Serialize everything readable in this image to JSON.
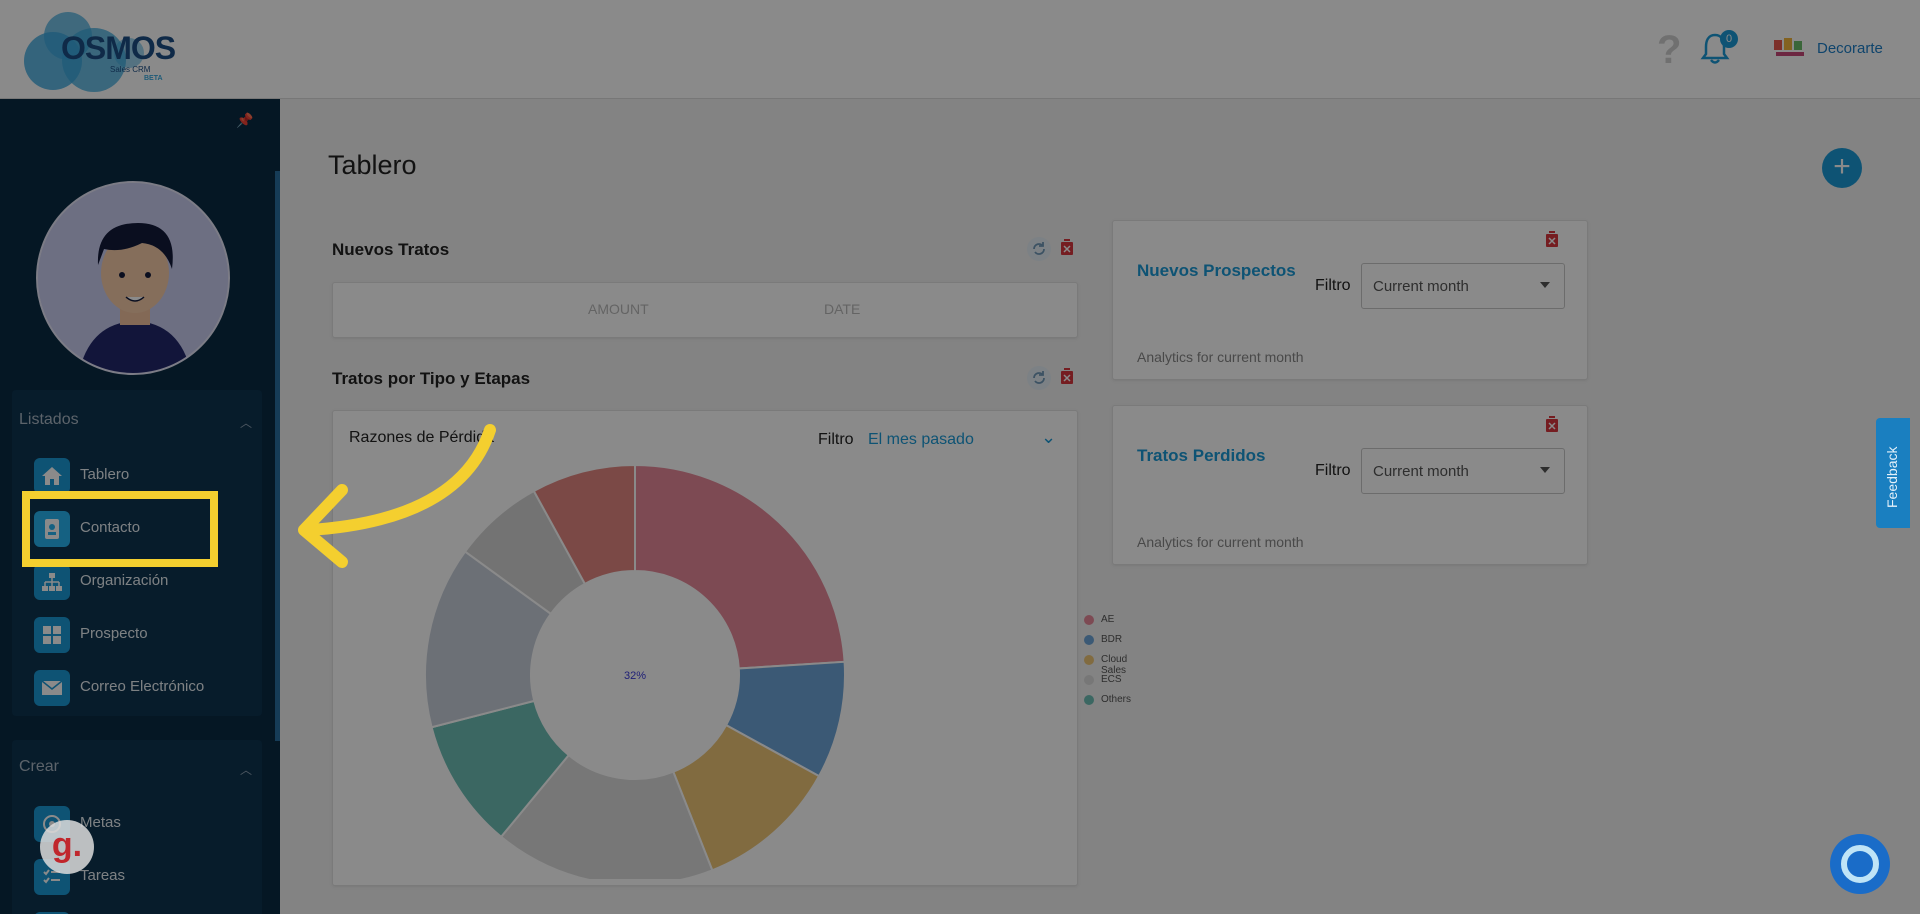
{
  "header": {
    "logo_text": "OSMOS",
    "logo_sub": "Sales CRM",
    "logo_beta": "BETA",
    "help_icon": "?",
    "notification_count": "0",
    "company_name": "Decorarte"
  },
  "sidebar": {
    "listados": {
      "title": "Listados",
      "items": [
        {
          "label": "Tablero",
          "icon": "home-icon"
        },
        {
          "label": "Contacto",
          "icon": "contact-card-icon"
        },
        {
          "label": "Organización",
          "icon": "org-chart-icon"
        },
        {
          "label": "Prospecto",
          "icon": "grid-icon"
        },
        {
          "label": "Correo Electrónico",
          "icon": "mail-icon"
        }
      ]
    },
    "crear": {
      "title": "Crear",
      "items": [
        {
          "label": "Metas",
          "icon": "target-icon"
        },
        {
          "label": "Tareas",
          "icon": "checklist-icon"
        }
      ]
    }
  },
  "main": {
    "page_title": "Tablero",
    "fab_label": "+",
    "nuevos_tratos": {
      "title": "Nuevos Tratos",
      "columns": [
        "AMOUNT",
        "DATE"
      ]
    },
    "tratos_tipo": {
      "title": "Tratos por Tipo y Etapas",
      "subtitle": "Razones de Pérdida",
      "filter_label": "Filtro",
      "filter_value": "El mes pasado",
      "center_label": "32%"
    },
    "nuevos_prospectos": {
      "title": "Nuevos Prospectos",
      "filter_label": "Filtro",
      "filter_value": "Current month",
      "analytics": "Analytics for current month"
    },
    "tratos_perdidos": {
      "title": "Tratos Perdidos",
      "filter_label": "Filtro",
      "filter_value": "Current month",
      "analytics": "Analytics for current month"
    }
  },
  "chart_data": {
    "type": "pie",
    "legend": [
      "AE",
      "BDR",
      "Cloud Sales",
      "ECS",
      "Others"
    ],
    "center_label": "32%",
    "slices": [
      {
        "label": "",
        "value": 24,
        "color": "#e8899a"
      },
      {
        "label": "",
        "value": 9,
        "color": "#6da5d8"
      },
      {
        "label": "",
        "value": 11,
        "color": "#efc676"
      },
      {
        "label": "",
        "value": 17,
        "color": "#dcdcdc"
      },
      {
        "label": "",
        "value": 10,
        "color": "#6dbfb6"
      },
      {
        "label": "",
        "value": 14,
        "color": "#c8cfdb"
      },
      {
        "label": "",
        "value": 7,
        "color": "#d4d4d4"
      },
      {
        "label": "",
        "value": 8,
        "color": "#e38882"
      }
    ],
    "legend_colors": [
      "#e8899a",
      "#6da5d8",
      "#efc676",
      "#dcdcdc",
      "#6dbfb6"
    ]
  },
  "feedback_label": "Feedback",
  "badge_letter": "g."
}
